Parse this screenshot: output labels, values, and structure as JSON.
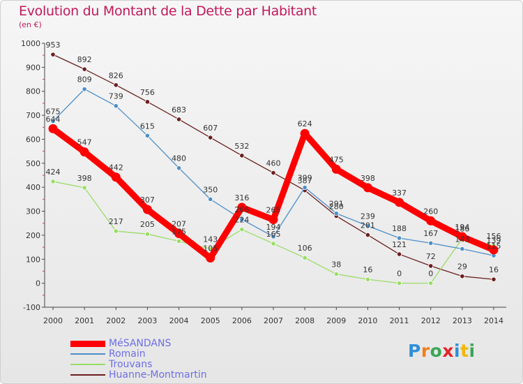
{
  "chart_data": {
    "type": "line",
    "title": "Evolution du Montant de la Dette par Habitant",
    "subtitle": "(en €)",
    "x": [
      "2000",
      "2001",
      "2002",
      "2003",
      "2004",
      "2005",
      "2006",
      "2007",
      "2008",
      "2009",
      "2010",
      "2011",
      "2012",
      "2013",
      "2014"
    ],
    "ylim": [
      -100,
      1000
    ],
    "yticks": [
      -100,
      0,
      100,
      200,
      300,
      400,
      500,
      600,
      700,
      800,
      900,
      1000
    ],
    "grid": false,
    "legend_position": "bottom-left",
    "series": [
      {
        "name": "Huanne-Montmartin",
        "color": "#6b1e1e",
        "values": [
          953,
          892,
          826,
          756,
          683,
          607,
          532,
          460,
          387,
          280,
          201,
          121,
          72,
          29,
          16
        ]
      },
      {
        "name": "Trouvans",
        "color": "#99dd66",
        "values": [
          424,
          398,
          217,
          205,
          175,
          143,
          224,
          165,
          106,
          38,
          16,
          0,
          0,
          186,
          156
        ]
      },
      {
        "name": "Romain",
        "color": "#4d8fc8",
        "values": [
          675,
          809,
          739,
          615,
          480,
          350,
          266,
          194,
          399,
          291,
          239,
          188,
          167,
          143,
          115
        ]
      },
      {
        "name": "MéSANDANS",
        "color": "#ff0000",
        "values": [
          644,
          547,
          442,
          307,
          207,
          105,
          316,
          265,
          624,
          475,
          398,
          337,
          260,
          194,
          139
        ]
      }
    ]
  },
  "legend": {
    "items": [
      {
        "label": "MéSANDANS",
        "color": "#ff0000",
        "thickness": 9
      },
      {
        "label": "Romain",
        "color": "#4d8fc8",
        "thickness": 2
      },
      {
        "label": "Trouvans",
        "color": "#99dd66",
        "thickness": 2
      },
      {
        "label": "Huanne-Montmartin",
        "color": "#6b1e1e",
        "thickness": 2
      }
    ]
  },
  "logo": {
    "letters": [
      {
        "ch": "P",
        "color": "#2f8fd8"
      },
      {
        "ch": "r",
        "color": "#ef7f1a"
      },
      {
        "ch": "o",
        "color": "#3aa655"
      },
      {
        "ch": "x",
        "color": "#e3242b"
      },
      {
        "ch": "i",
        "color": "#2f8fd8"
      },
      {
        "ch": "t",
        "color": "#f2b705"
      },
      {
        "ch": "i",
        "color": "#3aa655"
      }
    ]
  }
}
